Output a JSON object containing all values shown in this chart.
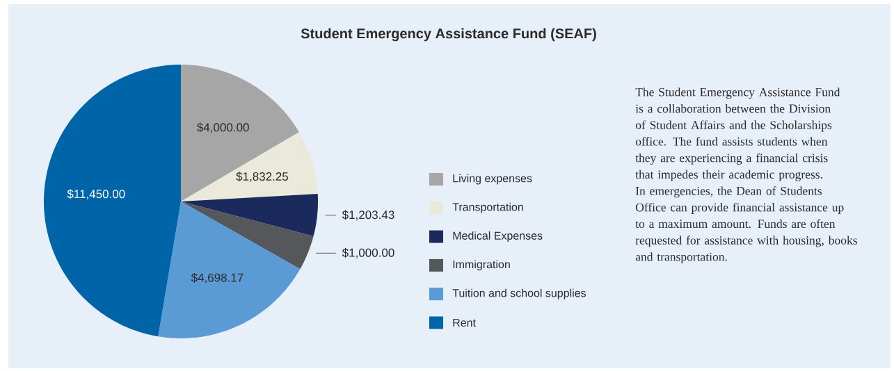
{
  "chart_data": {
    "type": "pie",
    "title": "Student Emergency Assistance Fund (SEAF)",
    "categories": [
      "Living expenses",
      "Transportation",
      "Medical Expenses",
      "Immigration",
      "Tuition and school supplies",
      "Rent"
    ],
    "values": [
      4000.0,
      1832.25,
      1203.43,
      1000.0,
      4698.17,
      11450.0
    ],
    "value_labels": [
      "$4,000.00",
      "$1,832.25",
      "$1,203.43",
      "$1,000.00",
      "$4,698.17",
      "$11,450.00"
    ],
    "colors": [
      "#a6a6a6",
      "#eae9da",
      "#1b2a5c",
      "#55575a",
      "#5b9bd5",
      "#0064a8"
    ],
    "legend": "right",
    "annotations": [
      "The Student Emergency Assistance Fund is a collaboration between the Division of Student Affairs and the Scholarships office. The fund assists students when they are experiencing a financial crisis that impedes their academic progress. In emergencies, the Dean of Students Office can provide financial assistance up to a maximum amount. Funds are often requested for assistance with housing, books and transportation."
    ]
  }
}
